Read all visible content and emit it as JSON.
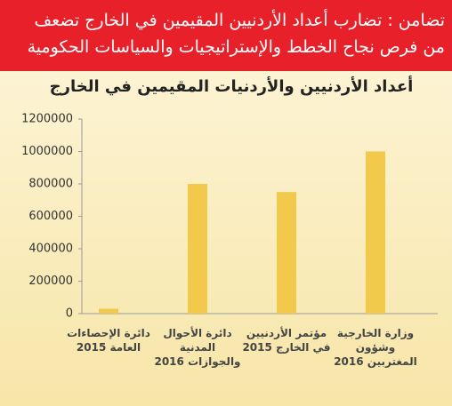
{
  "header": {
    "lines": [
      "تضامن : تضارب أعداد الأردنيين المقيمين في الخارج تضعف",
      "من فرص نجاح الخطط والإستراتيجيات والسياسات الحكومية"
    ]
  },
  "chart_data": {
    "type": "bar",
    "title": "أعداد الأردنيين والأردنيات المقيمين في الخارج",
    "categories": [
      "دائرة الإحصاءات العامة 2015",
      "دائرة الأحوال المدنية والجوازات 2016",
      "مؤتمر الأردنيين في الخارج 2015",
      "وزارة الخارجية وشؤون المغتربين 2016"
    ],
    "values": [
      30000,
      800000,
      750000,
      1000000
    ],
    "color": "#f2c94a",
    "ylim": [
      0,
      1200000
    ],
    "yticks": [
      0,
      200000,
      400000,
      600000,
      800000,
      1000000,
      1200000
    ],
    "grid": false
  }
}
